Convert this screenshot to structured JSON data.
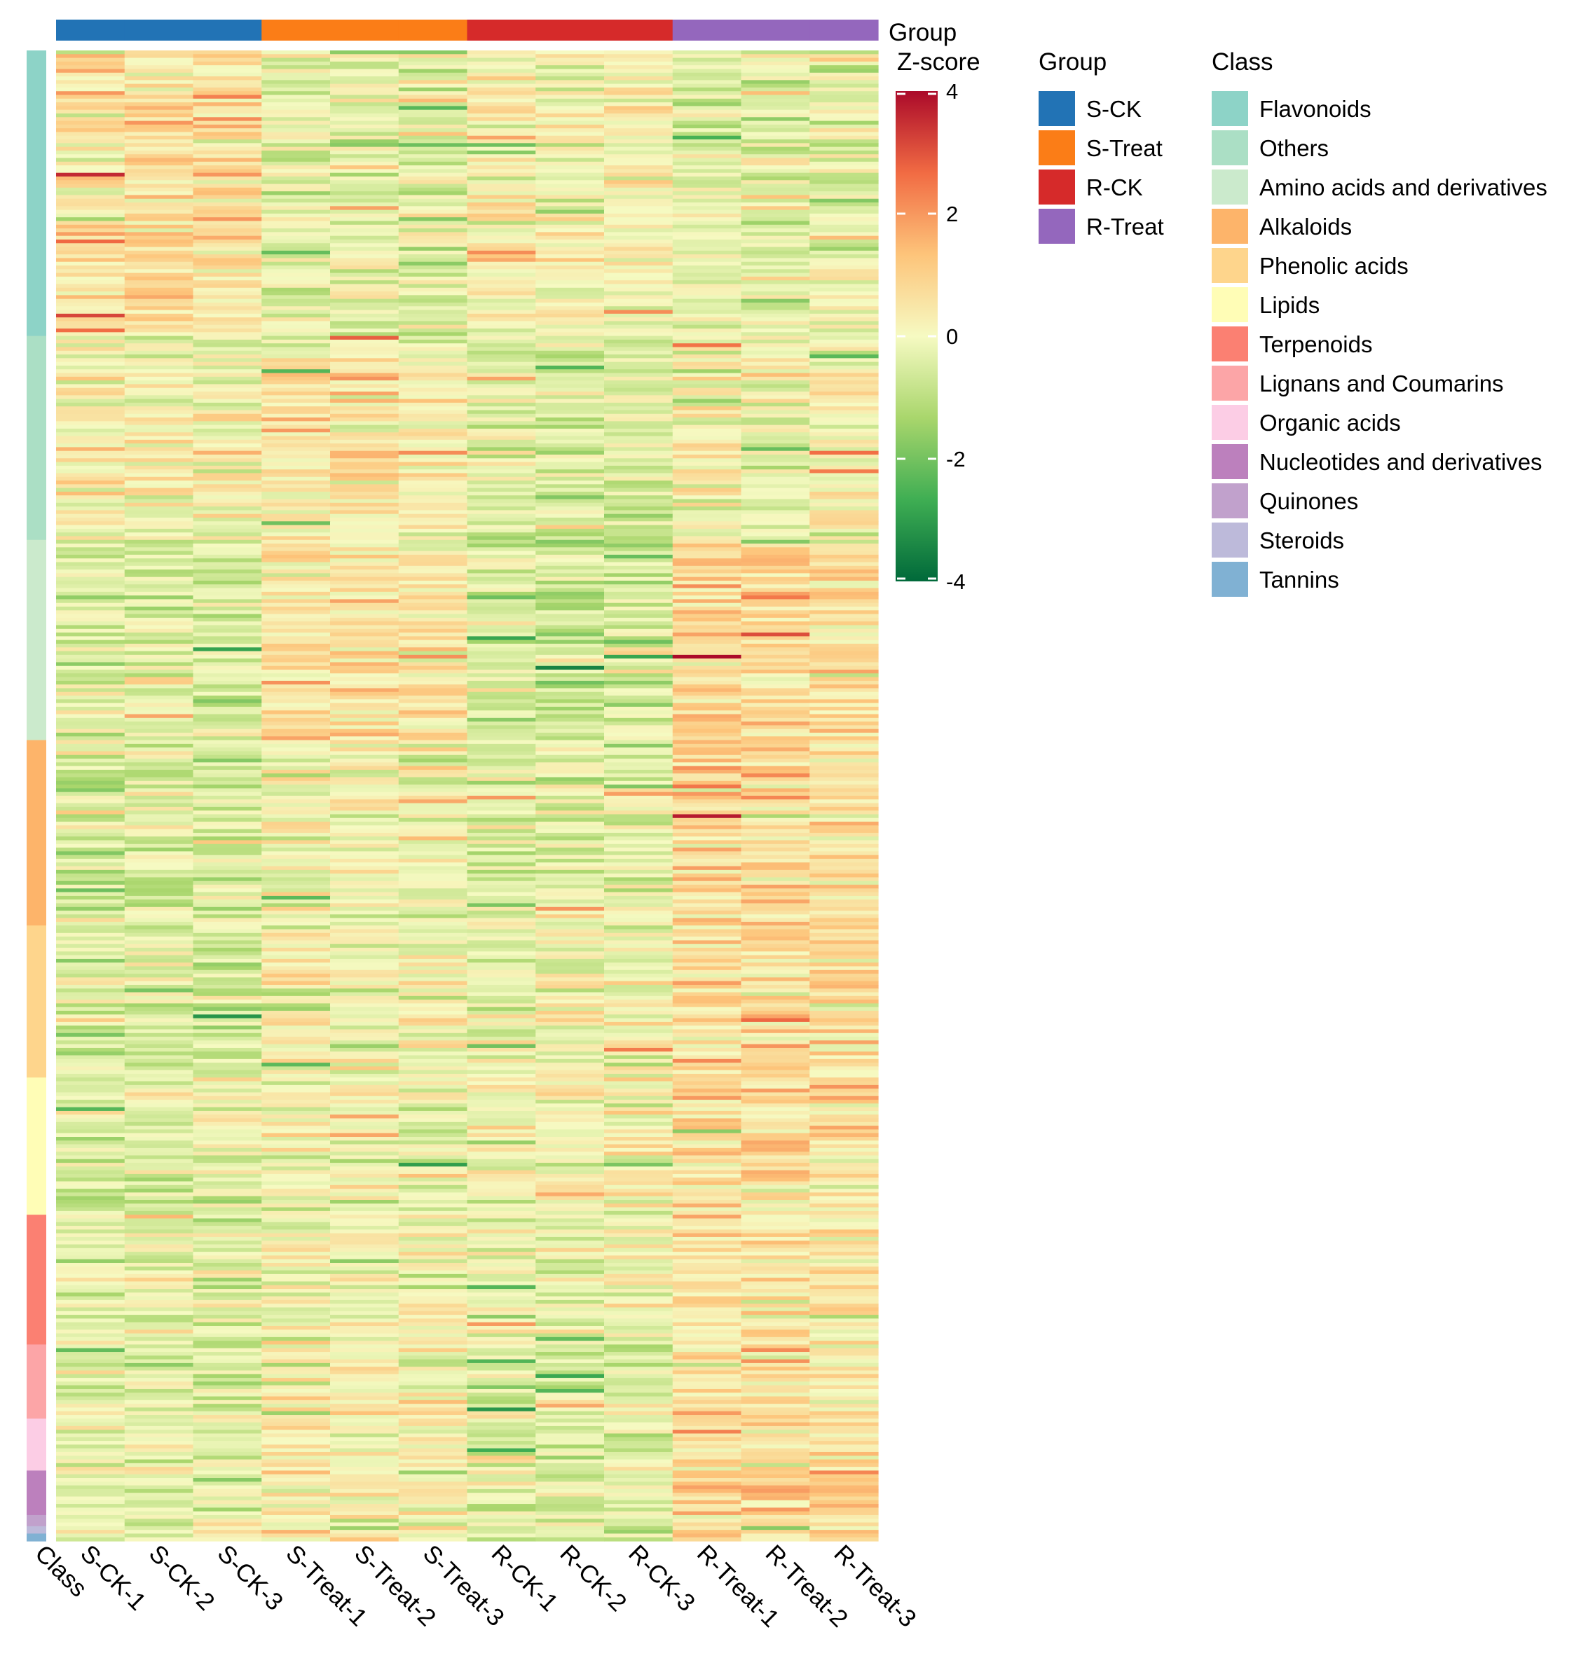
{
  "chart_data": {
    "type": "heatmap",
    "title": "",
    "columns": [
      "S-CK-1",
      "S-CK-2",
      "S-CK-3",
      "S-Treat-1",
      "S-Treat-2",
      "S-Treat-3",
      "R-CK-1",
      "R-CK-2",
      "R-CK-3",
      "R-Treat-1",
      "R-Treat-2",
      "R-Treat-3"
    ],
    "column_groups": [
      "S-CK",
      "S-CK",
      "S-CK",
      "S-Treat",
      "S-Treat",
      "S-Treat",
      "R-CK",
      "R-CK",
      "R-CK",
      "R-Treat",
      "R-Treat",
      "R-Treat"
    ],
    "row_annotation_label": "Class",
    "group_annotation_label": "Group",
    "colorbar": {
      "title": "Z-score",
      "range": [
        -4,
        4
      ],
      "ticks": [
        4,
        2,
        0,
        -2,
        -4
      ],
      "tick_labels": [
        "4",
        "2",
        "0",
        "-2",
        "-4"
      ],
      "stops": [
        "#00693a",
        "#3fae53",
        "#a9d66c",
        "#f6fac2",
        "#fdc47a",
        "#f16b43",
        "#ab0a2a"
      ]
    },
    "group_legend": {
      "title": "Group",
      "items": [
        {
          "label": "S-CK",
          "color": "#2273b5"
        },
        {
          "label": "S-Treat",
          "color": "#fb7d17"
        },
        {
          "label": "R-CK",
          "color": "#d62a2a"
        },
        {
          "label": "R-Treat",
          "color": "#9467bd"
        }
      ]
    },
    "class_legend": {
      "title": "Class",
      "items": [
        {
          "label": "Flavonoids",
          "color": "#8dd3c7",
          "rows": 77
        },
        {
          "label": "Others",
          "color": "#abdfc5",
          "rows": 55
        },
        {
          "label": "Amino acids and derivatives",
          "color": "#cbeacc",
          "rows": 54
        },
        {
          "label": "Alkaloids",
          "color": "#fdb46a",
          "rows": 50
        },
        {
          "label": "Phenolic acids",
          "color": "#fed58c",
          "rows": 41
        },
        {
          "label": "Lipids",
          "color": "#fffdb6",
          "rows": 37
        },
        {
          "label": "Terpenoids",
          "color": "#fb8072",
          "rows": 35
        },
        {
          "label": "Lignans and Coumarins",
          "color": "#fca5a7",
          "rows": 20
        },
        {
          "label": "Organic acids",
          "color": "#fccde5",
          "rows": 14
        },
        {
          "label": "Nucleotides and derivatives",
          "color": "#bc80bd",
          "rows": 12
        },
        {
          "label": "Quinones",
          "color": "#c1a1cc",
          "rows": 3
        },
        {
          "label": "Steroids",
          "color": "#bdbada",
          "rows": 2
        },
        {
          "label": "Tannins",
          "color": "#80b1d3",
          "rows": 2
        }
      ]
    },
    "group_means": [
      [
        0.5,
        0.6,
        0.5,
        -0.4,
        -0.4,
        -0.5,
        0.1,
        0.0,
        0.1,
        -0.3,
        -0.4,
        -0.4
      ],
      [
        0.2,
        0.1,
        0.1,
        0.4,
        0.5,
        0.2,
        -0.4,
        -0.5,
        -0.4,
        0.1,
        0.0,
        0.1
      ],
      [
        -0.4,
        -0.3,
        -0.4,
        0.6,
        0.5,
        0.4,
        -0.6,
        -0.7,
        -0.6,
        0.8,
        0.7,
        0.7
      ],
      [
        -0.5,
        -0.5,
        -0.5,
        0.0,
        0.1,
        -0.1,
        -0.4,
        -0.3,
        -0.4,
        0.9,
        0.9,
        0.8
      ],
      [
        -0.4,
        -0.5,
        -0.6,
        0.1,
        0.0,
        0.0,
        -0.2,
        0.0,
        -0.1,
        0.7,
        0.8,
        0.7
      ],
      [
        -0.7,
        -0.5,
        -0.4,
        -0.3,
        -0.2,
        -0.3,
        0.0,
        0.1,
        0.1,
        0.6,
        0.5,
        0.5
      ],
      [
        -0.3,
        -0.3,
        -0.4,
        0.0,
        -0.1,
        0.0,
        -0.1,
        -0.2,
        -0.2,
        0.5,
        0.5,
        0.5
      ],
      [
        -0.4,
        -0.3,
        -0.4,
        0.2,
        0.1,
        0.1,
        -0.5,
        -0.4,
        -0.5,
        0.6,
        0.6,
        0.5
      ],
      [
        -0.2,
        -0.4,
        -0.3,
        0.1,
        0.0,
        0.1,
        -0.4,
        -0.3,
        -0.4,
        0.5,
        0.5,
        0.4
      ],
      [
        -0.4,
        -0.4,
        -0.3,
        0.3,
        0.2,
        0.1,
        -0.6,
        -0.5,
        -0.5,
        0.8,
        0.9,
        0.8
      ],
      [
        -0.3,
        -0.3,
        -0.3,
        0.1,
        0.1,
        0.1,
        -0.4,
        -0.4,
        -0.4,
        0.6,
        0.6,
        0.6
      ],
      [
        -0.3,
        -0.3,
        -0.3,
        0.1,
        0.1,
        0.1,
        -0.4,
        -0.4,
        -0.4,
        0.6,
        0.6,
        0.6
      ],
      [
        -0.3,
        -0.3,
        -0.3,
        0.1,
        0.1,
        0.1,
        -0.4,
        -0.4,
        -0.4,
        0.6,
        0.6,
        0.6
      ]
    ],
    "noise_sd": 0.55,
    "seed": 20240517
  }
}
